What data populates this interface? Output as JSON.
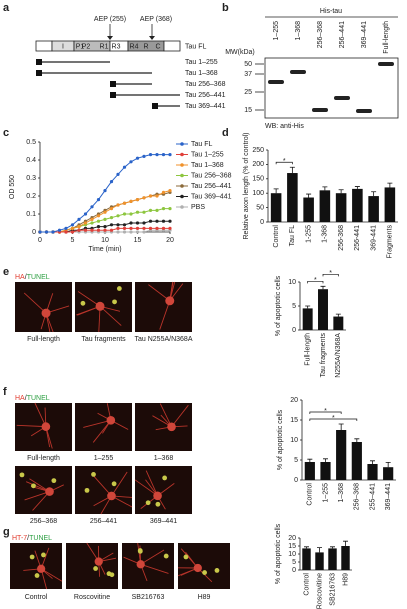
{
  "panel_labels": [
    "a",
    "b",
    "c",
    "d",
    "e",
    "f",
    "g"
  ],
  "diagram": {
    "sites": [
      "AEP (255)",
      "AEP (368)"
    ],
    "domains": [
      "I",
      "P1",
      "P2",
      "R1",
      "R3",
      "R4",
      "R",
      "C"
    ],
    "constructs": [
      "Tau FL",
      "Tau 1–255",
      "Tau 1–368",
      "Tau 256–368",
      "Tau 256–441",
      "Tau 369–441"
    ]
  },
  "blot": {
    "header": "His-tau",
    "lanes": [
      "1–255",
      "1–368",
      "256–368",
      "256–441",
      "369–441",
      "Full-length"
    ],
    "mw_title": "MW(kDa)",
    "mw": [
      50,
      37,
      25,
      15
    ],
    "footer": "WB: anti-His"
  },
  "images": {
    "e": {
      "header": [
        "HA",
        "/",
        "TUNEL"
      ],
      "labels": [
        "Full-length",
        "Tau fragments",
        "Tau N255A/N368A"
      ]
    },
    "f": {
      "header": [
        "HA",
        "/",
        "TUNEL"
      ],
      "labels": [
        "Full-length",
        "1–255",
        "1–368",
        "256–368",
        "256–441",
        "369–441"
      ]
    },
    "g": {
      "header": [
        "HT-7",
        "/",
        "TUNEL"
      ],
      "labels": [
        "Control",
        "Roscovitine",
        "SB216763",
        "H89"
      ]
    }
  },
  "chart_data": [
    {
      "type": "line",
      "x_label": "Time (min)",
      "y_label": "OD 550",
      "x": [
        0,
        1,
        2,
        3,
        4,
        5,
        6,
        7,
        8,
        9,
        10,
        11,
        12,
        13,
        14,
        15,
        16,
        17,
        18,
        19,
        20
      ],
      "xlim": [
        0,
        20
      ],
      "xticks": [
        0,
        5,
        10,
        15,
        20
      ],
      "ylim": [
        0,
        0.5
      ],
      "yticks": [
        0,
        0.1,
        0.2,
        0.3,
        0.4,
        0.5
      ],
      "series": [
        {
          "name": "Tau FL",
          "color": "#2a63c9",
          "values": [
            0,
            0,
            0,
            0.01,
            0.02,
            0.04,
            0.07,
            0.1,
            0.14,
            0.18,
            0.23,
            0.28,
            0.32,
            0.36,
            0.39,
            0.41,
            0.42,
            0.43,
            0.43,
            0.43,
            0.43
          ]
        },
        {
          "name": "Tau 1–255",
          "color": "#e0403a",
          "values": [
            0,
            0,
            0,
            0,
            0,
            0,
            0.01,
            0.01,
            0.01,
            0.01,
            0.01,
            0.01,
            0.02,
            0.02,
            0.02,
            0.02,
            0.02,
            0.02,
            0.02,
            0.02,
            0.02
          ]
        },
        {
          "name": "Tau 1–368",
          "color": "#f0922b",
          "values": [
            0,
            0,
            0,
            0,
            0.01,
            0.02,
            0.03,
            0.05,
            0.07,
            0.09,
            0.11,
            0.13,
            0.15,
            0.16,
            0.17,
            0.18,
            0.19,
            0.2,
            0.2,
            0.22,
            0.23
          ]
        },
        {
          "name": "Tau 256–368",
          "color": "#8dc63f",
          "values": [
            0,
            0,
            0,
            0,
            0.01,
            0.02,
            0.03,
            0.04,
            0.05,
            0.06,
            0.07,
            0.08,
            0.09,
            0.1,
            0.1,
            0.11,
            0.11,
            0.12,
            0.12,
            0.13,
            0.13
          ]
        },
        {
          "name": "Tau 256–441",
          "color": "#8b6a3a",
          "values": [
            0,
            0,
            0,
            0,
            0.01,
            0.02,
            0.04,
            0.06,
            0.08,
            0.1,
            0.12,
            0.14,
            0.15,
            0.16,
            0.17,
            0.18,
            0.19,
            0.2,
            0.21,
            0.21,
            0.22
          ]
        },
        {
          "name": "Tau 369–441",
          "color": "#222222",
          "values": [
            0,
            0,
            0,
            0,
            0,
            0.01,
            0.01,
            0.02,
            0.02,
            0.03,
            0.03,
            0.04,
            0.04,
            0.04,
            0.05,
            0.05,
            0.05,
            0.06,
            0.06,
            0.06,
            0.06
          ]
        },
        {
          "name": "PBS",
          "color": "#b0b0b0",
          "values": [
            0,
            0,
            0,
            0,
            0,
            0,
            0,
            0,
            0,
            0,
            0,
            0,
            0,
            0,
            0,
            0,
            0,
            0.01,
            0.01,
            0.01,
            0.01
          ]
        }
      ]
    },
    {
      "type": "bar",
      "y_label": "Relative axon length (% of control)",
      "categories": [
        "Control",
        "Tau FL",
        "1-255",
        "1-368",
        "256-368",
        "256-441",
        "369-441",
        "Fragments"
      ],
      "values": [
        100,
        170,
        85,
        110,
        100,
        115,
        90,
        120
      ],
      "errors": [
        15,
        20,
        12,
        12,
        12,
        8,
        15,
        15
      ],
      "ylim": [
        0,
        250
      ],
      "yticks": [
        0,
        50,
        100,
        150,
        200,
        250
      ],
      "color": "#111111",
      "annotations": [
        "*"
      ]
    },
    {
      "type": "bar",
      "y_label": "% of apoptotic cells",
      "categories": [
        "Full-length",
        "Tau fragments",
        "N255A/N368A"
      ],
      "values": [
        4.5,
        8.5,
        2.8
      ],
      "errors": [
        0.5,
        0.6,
        0.5
      ],
      "ylim": [
        0,
        10
      ],
      "yticks": [
        0,
        5,
        10
      ],
      "color": "#111111",
      "annotations": [
        "*",
        "*"
      ]
    },
    {
      "type": "bar",
      "y_label": "% of apoptotic cells",
      "categories": [
        "Control",
        "1–255",
        "1–368",
        "256–368",
        "255–441",
        "369–441"
      ],
      "values": [
        4.5,
        4.5,
        12.5,
        9.5,
        4,
        3.2
      ],
      "errors": [
        0.7,
        0.8,
        1.5,
        0.8,
        0.8,
        1.2
      ],
      "ylim": [
        0,
        20
      ],
      "yticks": [
        0,
        5,
        10,
        15,
        20
      ],
      "color": "#111111",
      "annotations": [
        "*",
        "*"
      ]
    },
    {
      "type": "bar",
      "y_label": "% of apoptotic cells",
      "categories": [
        "Control",
        "Roscovitine",
        "SB216763",
        "H89"
      ],
      "values": [
        13.5,
        11,
        13.5,
        15
      ],
      "errors": [
        1,
        3,
        1,
        3
      ],
      "ylim": [
        0,
        20
      ],
      "yticks": [
        0,
        5,
        10,
        15,
        20
      ],
      "color": "#111111"
    }
  ]
}
